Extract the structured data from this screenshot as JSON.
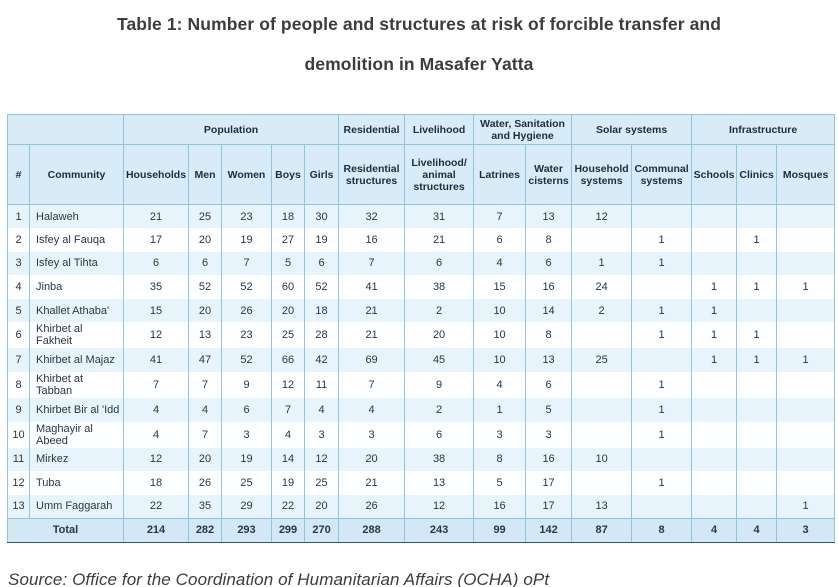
{
  "title": "Table 1: Number of people and structures at risk of forcible transfer and\ndemolition in Masafer Yatta",
  "source": "Source: Office for the Coordination of Humanitarian Affairs (OCHA) oPt",
  "colors": {
    "header_bg": "#d7ecf7",
    "odd_row_bg": "#e8f4fb",
    "even_row_bg": "#fdfeff",
    "total_bg": "#d2e9f5",
    "cell_border": "#94c4d9",
    "outer_border": "#35596b",
    "header_text": "#1c2e3d",
    "cell_text": "#253848",
    "title_text": "#3c3c3c"
  },
  "table": {
    "group_headers": [
      {
        "label": "",
        "colspan": 2
      },
      {
        "label": "Population",
        "colspan": 5
      },
      {
        "label": "Residential",
        "colspan": 1
      },
      {
        "label": "Livelihood",
        "colspan": 1
      },
      {
        "label": "Water, Sanitation\nand Hygiene",
        "colspan": 2
      },
      {
        "label": "Solar systems",
        "colspan": 2
      },
      {
        "label": "Infrastructure",
        "colspan": 3
      }
    ],
    "columns": [
      "#",
      "Community",
      "Households",
      "Men",
      "Women",
      "Boys",
      "Girls",
      "Residential\nstructures",
      "Livelihood/\nanimal\nstructures",
      "Latrines",
      "Water\ncisterns",
      "Household\nsystems",
      "Communal\nsystems",
      "Schools",
      "Clinics",
      "Mosques"
    ],
    "rows": [
      [
        "1",
        "Halaweh",
        "21",
        "25",
        "23",
        "18",
        "30",
        "32",
        "31",
        "7",
        "13",
        "12",
        "",
        "",
        "",
        ""
      ],
      [
        "2",
        "Isfey al Fauqa",
        "17",
        "20",
        "19",
        "27",
        "19",
        "16",
        "21",
        "6",
        "8",
        "",
        "1",
        "",
        "1",
        ""
      ],
      [
        "3",
        "Isfey al Tihta",
        "6",
        "6",
        "7",
        "5",
        "6",
        "7",
        "6",
        "4",
        "6",
        "1",
        "1",
        "",
        "",
        ""
      ],
      [
        "4",
        "Jinba",
        "35",
        "52",
        "52",
        "60",
        "52",
        "41",
        "38",
        "15",
        "16",
        "24",
        "",
        "1",
        "1",
        "1"
      ],
      [
        "5",
        "Khallet Athaba'",
        "15",
        "20",
        "26",
        "20",
        "18",
        "21",
        "2",
        "10",
        "14",
        "2",
        "1",
        "1",
        "",
        ""
      ],
      [
        "6",
        "Khirbet al Fakheit",
        "12",
        "13",
        "23",
        "25",
        "28",
        "21",
        "20",
        "10",
        "8",
        "",
        "1",
        "1",
        "1",
        ""
      ],
      [
        "7",
        "Khirbet al Majaz",
        "41",
        "47",
        "52",
        "66",
        "42",
        "69",
        "45",
        "10",
        "13",
        "25",
        "",
        "1",
        "1",
        "1"
      ],
      [
        "8",
        "Khirbet at Tabban",
        "7",
        "7",
        "9",
        "12",
        "11",
        "7",
        "9",
        "4",
        "6",
        "",
        "1",
        "",
        "",
        ""
      ],
      [
        "9",
        "Khirbet Bir al 'Idd",
        "4",
        "4",
        "6",
        "7",
        "4",
        "4",
        "2",
        "1",
        "5",
        "",
        "1",
        "",
        "",
        ""
      ],
      [
        "10",
        "Maghayir al Abeed",
        "4",
        "7",
        "3",
        "4",
        "3",
        "3",
        "6",
        "3",
        "3",
        "",
        "1",
        "",
        "",
        ""
      ],
      [
        "11",
        "Mirkez",
        "12",
        "20",
        "19",
        "14",
        "12",
        "20",
        "38",
        "8",
        "16",
        "10",
        "",
        "",
        "",
        ""
      ],
      [
        "12",
        "Tuba",
        "18",
        "26",
        "25",
        "19",
        "25",
        "21",
        "13",
        "5",
        "17",
        "",
        "1",
        "",
        "",
        ""
      ],
      [
        "13",
        "Umm Faggarah",
        "22",
        "35",
        "29",
        "22",
        "20",
        "26",
        "12",
        "16",
        "17",
        "13",
        "",
        "",
        "",
        "1"
      ]
    ],
    "total": {
      "label": "Total",
      "values": [
        "214",
        "282",
        "293",
        "299",
        "270",
        "288",
        "243",
        "99",
        "142",
        "87",
        "8",
        "4",
        "4",
        "3"
      ]
    }
  }
}
